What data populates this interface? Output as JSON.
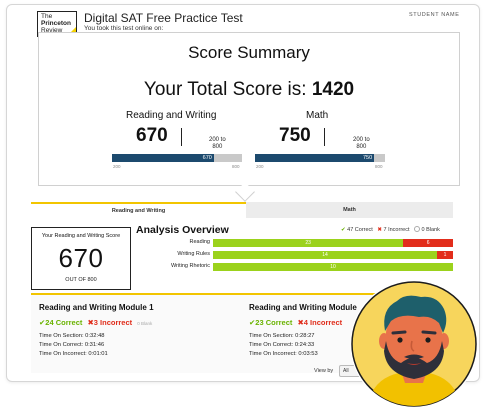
{
  "header": {
    "logo_line1": "The",
    "logo_line2": "Princeton",
    "logo_line3": "Review",
    "title": "Digital SAT Free Practice Test",
    "subtitle": "You took this test online on:",
    "student_label": "STUDENT NAME"
  },
  "summary": {
    "title": "Score Summary",
    "total_prefix": "Your Total Score is:",
    "total_score": "1420",
    "sections": [
      {
        "name": "Reading and Writing",
        "score": "670",
        "range_line1": "200 to",
        "range_line2": "800",
        "bar_label": "670",
        "bar_min": "200",
        "bar_max": "800",
        "fraction": 0.7833
      },
      {
        "name": "Math",
        "score": "750",
        "range_line1": "200 to",
        "range_line2": "800",
        "bar_label": "750",
        "bar_min": "200",
        "bar_max": "800",
        "fraction": 0.9167
      }
    ]
  },
  "tabs": [
    {
      "label": "Reading and Writing",
      "active": true
    },
    {
      "label": "Math",
      "active": false
    }
  ],
  "score_box": {
    "label": "Your Reading and Writing Score",
    "score": "670",
    "out_of": "OUT OF 800"
  },
  "analysis": {
    "title": "Analysis Overview",
    "legend_correct": "47 Correct",
    "legend_incorrect": "7 Incorrect",
    "legend_blank": "0 Blank",
    "rows": [
      {
        "label": "Reading",
        "correct": 23,
        "incorrect": 6
      },
      {
        "label": "Writing Rules",
        "correct": 14,
        "incorrect": 1
      },
      {
        "label": "Writing Rhetoric",
        "correct": 10,
        "incorrect": 0
      }
    ]
  },
  "modules": [
    {
      "title": "Reading and Writing Module 1",
      "correct": "24 Correct",
      "incorrect": "3 Incorrect",
      "blank": "0 Blank",
      "time_section": "Time On Section: 0:32:48",
      "time_correct": "Time On Correct: 0:31:46",
      "time_incorrect": "Time On Incorrect: 0:01:01"
    },
    {
      "title": "Reading and Writing Module 2",
      "correct": "23 Correct",
      "incorrect": "4 Incorrect",
      "blank": "",
      "time_section": "Time On Section: 0:28:27",
      "time_correct": "Time On Correct: 0:24:33",
      "time_incorrect": "Time On Incorrect: 0:03:53"
    }
  ],
  "view_by": {
    "label": "View by",
    "value": "All"
  },
  "colors": {
    "navy": "#1c4a6e",
    "green": "#9bd21c",
    "red": "#e22d1b",
    "yellow": "#f2c500",
    "avatar_bg": "#f7d55c"
  },
  "icons": {
    "correct": "check-icon",
    "incorrect": "x-icon",
    "blank": "circle-icon",
    "avatar": "bearded-man-avatar"
  }
}
